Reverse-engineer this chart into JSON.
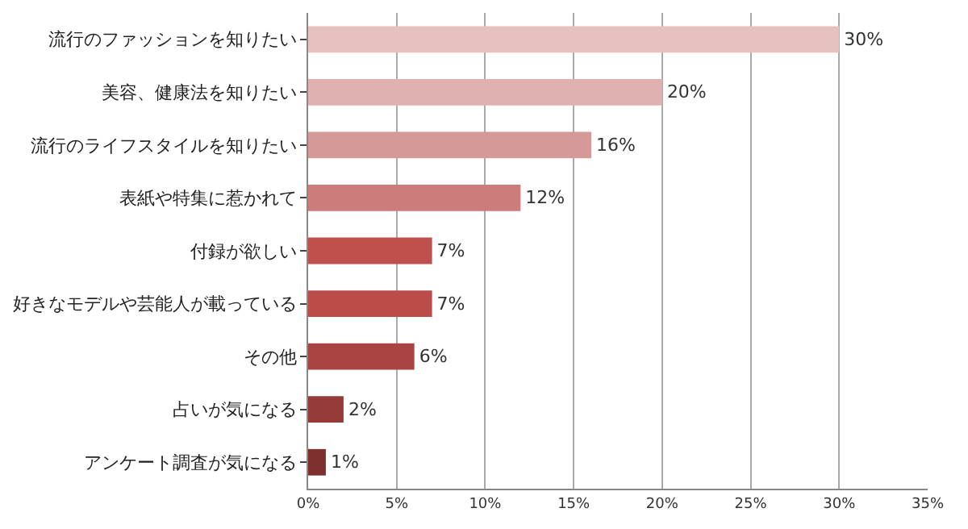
{
  "chart_data": {
    "type": "bar",
    "orientation": "horizontal",
    "categories": [
      "流行のファッションを知りたい",
      "美容、健康法を知りたい",
      "流行のライフスタイルを知りたい",
      "表紙や特集に惹かれて",
      "付録が欲しい",
      "好きなモデルや芸能人が載っている",
      "その他",
      "占いが気になる",
      "アンケート調査が気になる"
    ],
    "values": [
      30,
      20,
      16,
      12,
      7,
      7,
      6,
      2,
      1
    ],
    "colors": [
      "#e6c1c0",
      "#e0b1b0",
      "#d59997",
      "#cc7c7a",
      "#c0504d",
      "#bb4c49",
      "#a94442",
      "#963a38",
      "#7e302e"
    ],
    "value_labels": [
      "30%",
      "20%",
      "16%",
      "12%",
      "7%",
      "7%",
      "6%",
      "2%",
      "1%"
    ],
    "xlim": [
      0,
      35
    ],
    "xticks": [
      {
        "value": 0,
        "label": "0%"
      },
      {
        "value": 5,
        "label": "5%"
      },
      {
        "value": 10,
        "label": "10%"
      },
      {
        "value": 15,
        "label": "15%"
      },
      {
        "value": 20,
        "label": "20%"
      },
      {
        "value": 25,
        "label": "25%"
      },
      {
        "value": 30,
        "label": "30%"
      },
      {
        "value": 35,
        "label": "35%"
      }
    ],
    "grid": "x",
    "legend": false
  }
}
